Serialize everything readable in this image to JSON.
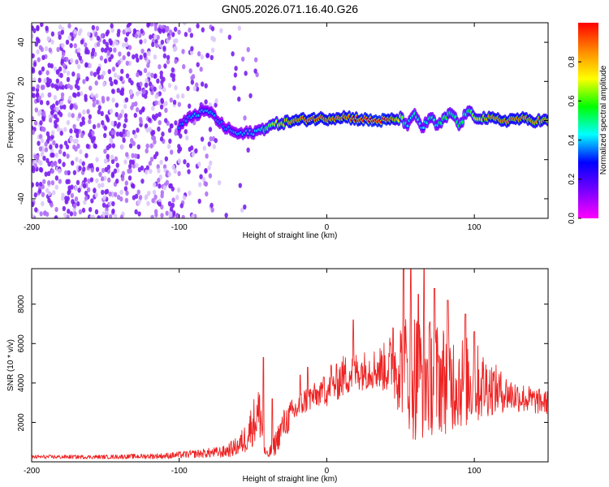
{
  "title": "GN05.2026.071.16.40.G26",
  "chart_data": [
    {
      "type": "heatmap",
      "title": "GN05.2026.071.16.40.G26",
      "xlabel": "Height of straight line (km)",
      "ylabel": "Frequency (Hz)",
      "xlim": [
        -200,
        150
      ],
      "ylim": [
        -50,
        50
      ],
      "x_ticks": [
        -200,
        -100,
        0,
        100
      ],
      "y_ticks": [
        -40,
        -20,
        0,
        20,
        40
      ],
      "colorbar": {
        "label": "Normalized spectral amplitude",
        "range": [
          0.0,
          1.0
        ],
        "ticks": [
          "0.0",
          "0.2",
          "0.4",
          "0.6",
          "0.8"
        ],
        "colormap": [
          "#ff00ff",
          "#7700ff",
          "#0000ff",
          "#00ffff",
          "#00ff00",
          "#ffff00",
          "#ff8800",
          "#ff0000"
        ]
      },
      "noise_region": [
        -200,
        -45
      ],
      "signal_trace": {
        "x": [
          -100,
          -90,
          -80,
          -70,
          -60,
          -50,
          -45,
          -40,
          -30,
          -20,
          -10,
          0,
          10,
          20,
          30,
          40,
          50,
          55,
          60,
          65,
          70,
          75,
          80,
          85,
          90,
          95,
          100,
          110,
          120,
          130,
          140,
          150
        ],
        "freq": [
          -3,
          3,
          5,
          -3,
          -7,
          -6,
          -5,
          -3,
          -1,
          0,
          1,
          1,
          2,
          1,
          0,
          0,
          1,
          -2,
          3,
          -4,
          2,
          -3,
          1,
          4,
          -3,
          5,
          2,
          1,
          0,
          1,
          0,
          0
        ],
        "amplitude": [
          0.35,
          0.4,
          0.4,
          0.35,
          0.4,
          0.4,
          0.45,
          0.6,
          0.8,
          0.9,
          0.95,
          0.9,
          0.9,
          0.95,
          1.0,
          1.0,
          0.7,
          0.4,
          0.5,
          0.4,
          0.5,
          0.45,
          0.6,
          0.5,
          0.55,
          0.5,
          0.7,
          0.85,
          0.9,
          0.9,
          0.85,
          0.85
        ]
      }
    },
    {
      "type": "line",
      "title": "",
      "xlabel": "Height of straight line (km)",
      "ylabel": "SNR (10 * v/v)",
      "xlim": [
        -200,
        150
      ],
      "ylim": [
        0,
        9800
      ],
      "x_ticks": [
        -200,
        -100,
        0,
        100
      ],
      "y_ticks": [
        2000,
        4000,
        6000,
        8000
      ],
      "series": [
        {
          "name": "SNR",
          "color": "#ee2222",
          "x": [
            -200,
            -150,
            -110,
            -90,
            -70,
            -60,
            -55,
            -50,
            -45,
            -42,
            -40,
            -35,
            -30,
            -25,
            -20,
            -15,
            -10,
            -5,
            0,
            5,
            10,
            20,
            30,
            40,
            50,
            60,
            70,
            80,
            90,
            100,
            110,
            120,
            130,
            140,
            150
          ],
          "center": [
            250,
            250,
            300,
            400,
            500,
            800,
            1200,
            2000,
            2500,
            500,
            300,
            900,
            1800,
            2300,
            2700,
            3100,
            3300,
            3400,
            3500,
            3900,
            4300,
            4600,
            4700,
            4800,
            4900,
            4400,
            4300,
            4200,
            4100,
            4000,
            3800,
            3500,
            3300,
            3100,
            3000
          ],
          "spread": [
            100,
            100,
            150,
            200,
            300,
            500,
            800,
            1200,
            1500,
            300,
            200,
            600,
            800,
            800,
            700,
            700,
            700,
            600,
            700,
            900,
            1100,
            1000,
            1000,
            1300,
            2500,
            3500,
            3000,
            2800,
            2500,
            2200,
            1500,
            1000,
            800,
            700,
            600
          ],
          "peaks": [
            [
              -43,
              5300
            ],
            [
              -37,
              3200
            ],
            [
              -18,
              4400
            ],
            [
              -13,
              4800
            ],
            [
              -2,
              4300
            ],
            [
              3,
              4900
            ],
            [
              18,
              7200
            ],
            [
              45,
              6800
            ],
            [
              52,
              9800
            ],
            [
              57,
              9800
            ],
            [
              62,
              8500
            ],
            [
              66,
              9800
            ],
            [
              73,
              8800
            ],
            [
              82,
              8200
            ],
            [
              94,
              7500
            ],
            [
              100,
              6600
            ]
          ]
        }
      ]
    }
  ]
}
